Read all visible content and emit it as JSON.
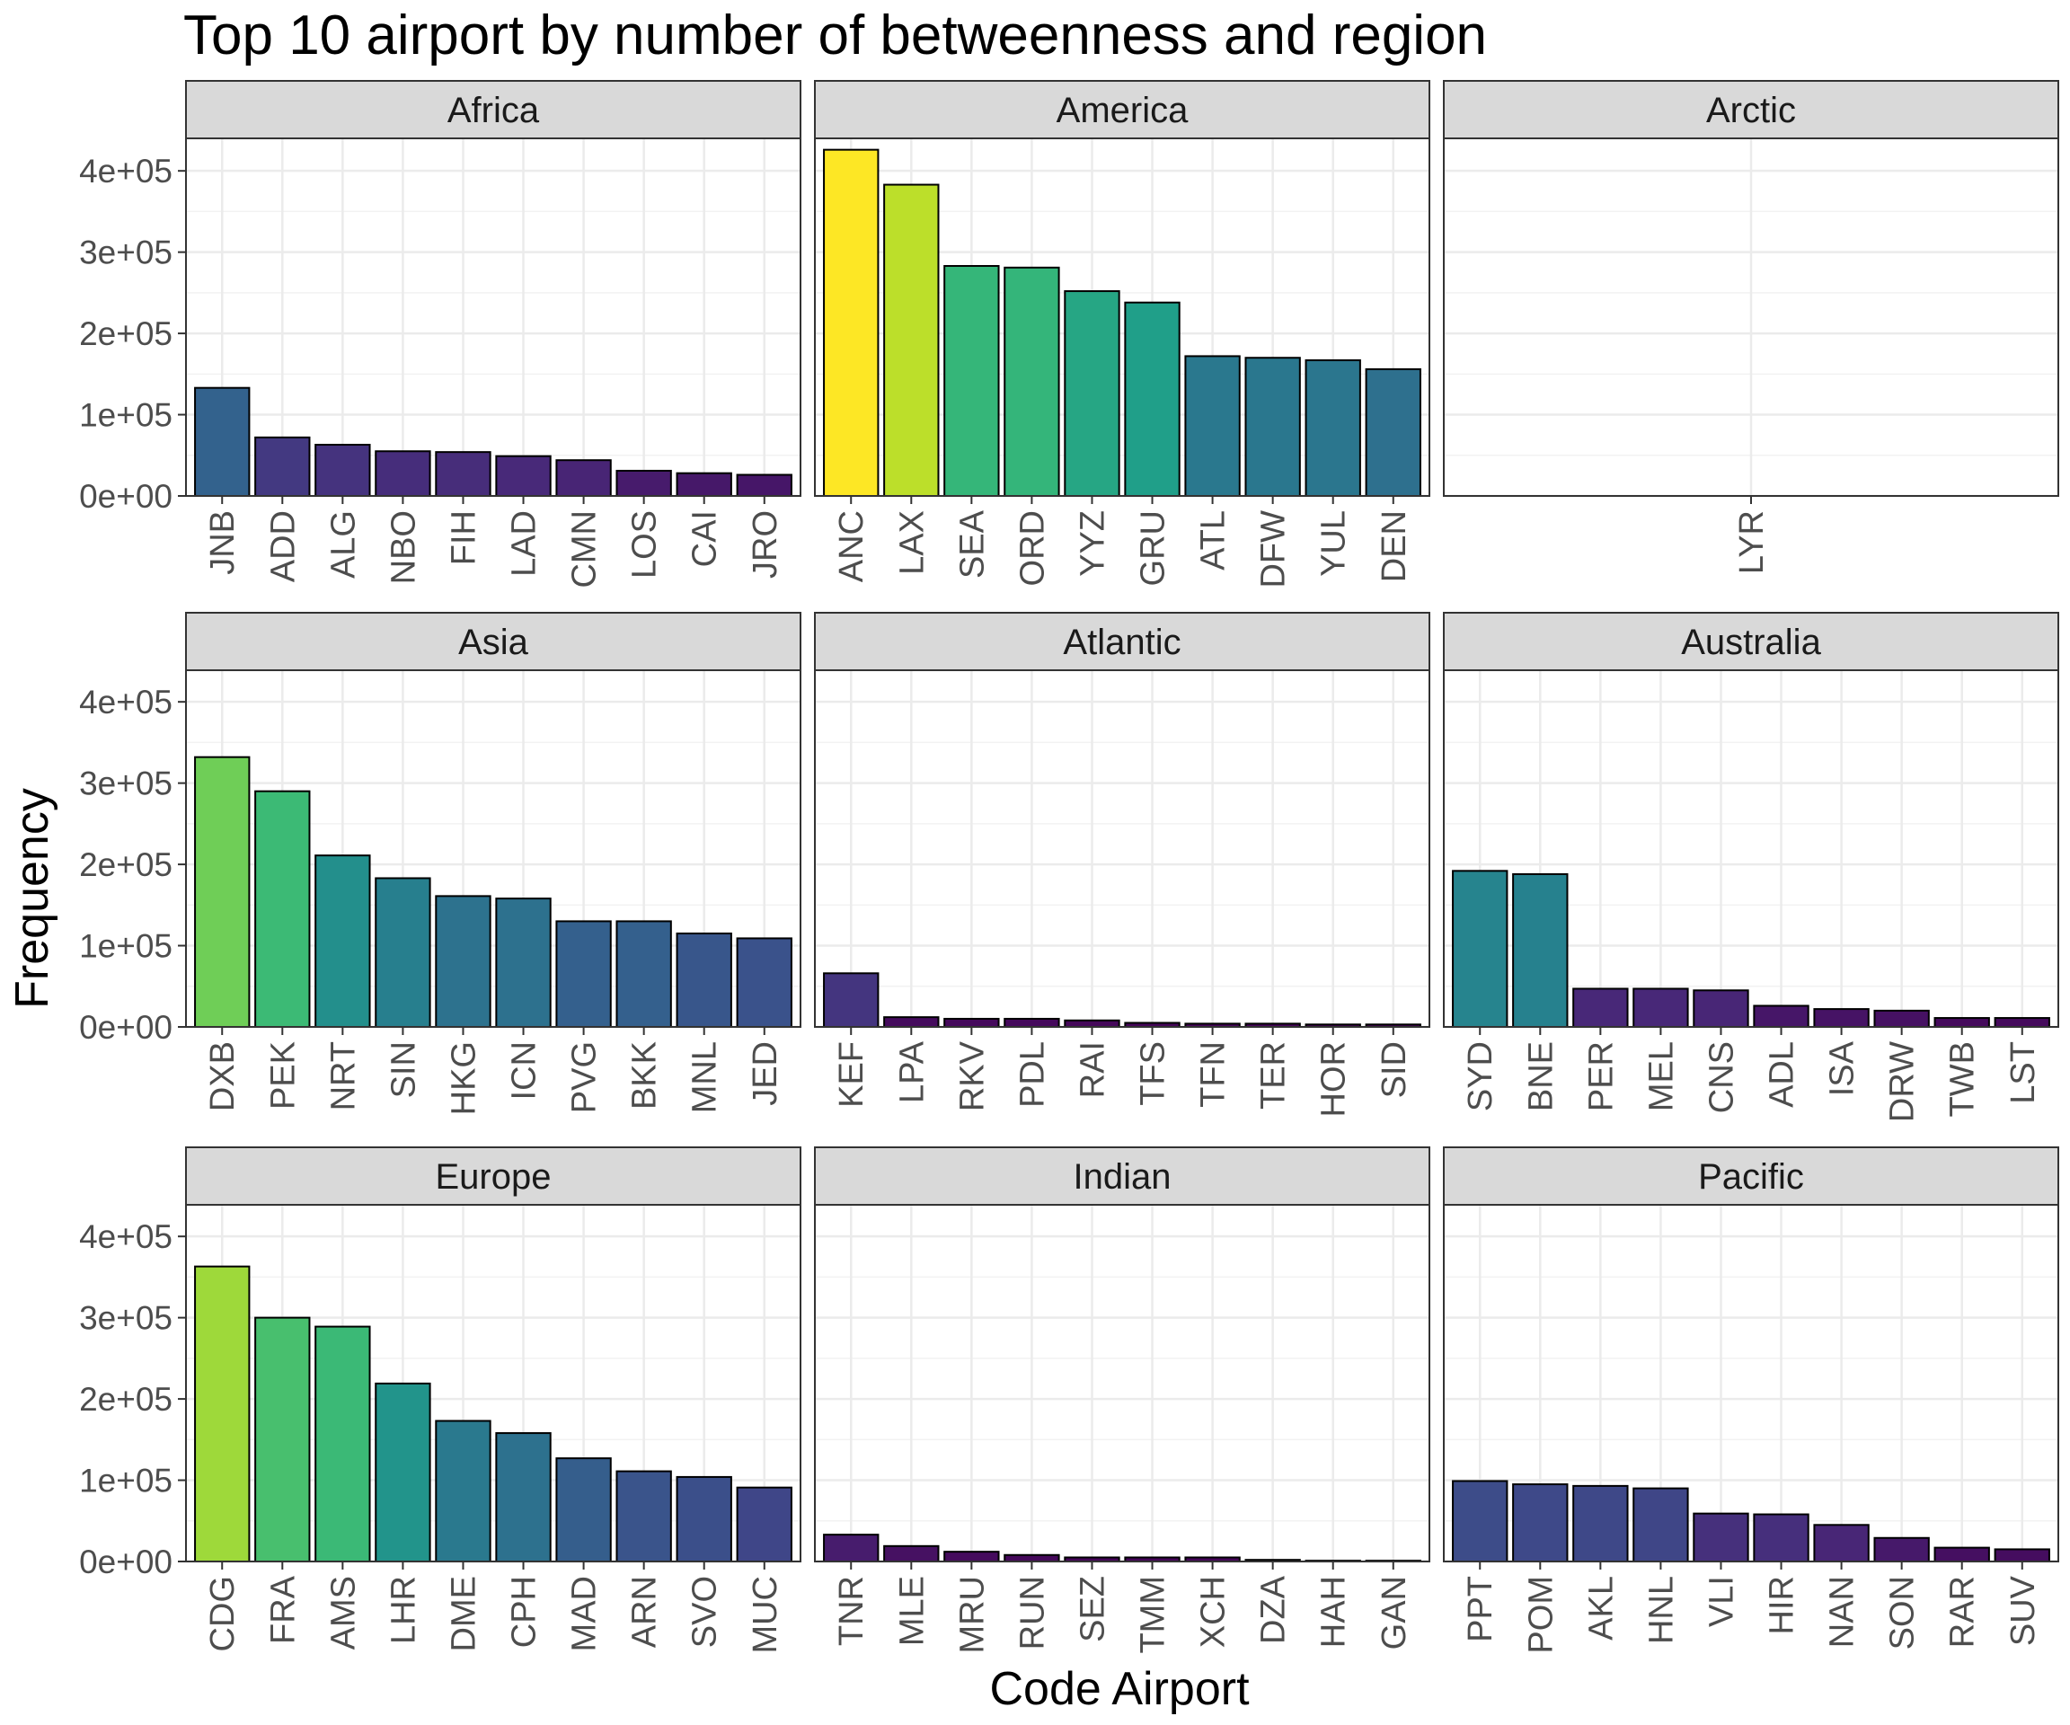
{
  "chart_data": {
    "type": "bar",
    "title": "Top 10 airport by number of betweenness and region",
    "xlabel": "Code Airport",
    "ylabel": "Frequency",
    "ylim": [
      0,
      440000
    ],
    "yticks": [
      0,
      100000,
      200000,
      300000,
      400000
    ],
    "ytick_labels": [
      "0e+00",
      "1e+05",
      "2e+05",
      "3e+05",
      "4e+05"
    ],
    "grid": true,
    "legend": "none",
    "color_scale": "viridis",
    "panels": [
      {
        "region": "Africa",
        "categories": [
          "JNB",
          "ADD",
          "ALG",
          "NBO",
          "FIH",
          "LAD",
          "CMN",
          "LOS",
          "CAI",
          "JRO"
        ],
        "values": [
          133000,
          72000,
          63000,
          55000,
          54000,
          49000,
          44000,
          31000,
          28000,
          26000
        ]
      },
      {
        "region": "America",
        "categories": [
          "ANC",
          "LAX",
          "SEA",
          "ORD",
          "YYZ",
          "GRU",
          "ATL",
          "DFW",
          "YUL",
          "DEN"
        ],
        "values": [
          426000,
          383000,
          283000,
          281000,
          252000,
          238000,
          172000,
          170000,
          167000,
          156000
        ]
      },
      {
        "region": "Arctic",
        "categories": [
          "LYR"
        ],
        "values": [
          0
        ]
      },
      {
        "region": "Asia",
        "categories": [
          "DXB",
          "PEK",
          "NRT",
          "SIN",
          "HKG",
          "ICN",
          "PVG",
          "BKK",
          "MNL",
          "JED"
        ],
        "values": [
          332000,
          290000,
          211000,
          183000,
          161000,
          158000,
          130000,
          130000,
          115000,
          109000
        ]
      },
      {
        "region": "Atlantic",
        "categories": [
          "KEF",
          "LPA",
          "RKV",
          "PDL",
          "RAI",
          "TFS",
          "TFN",
          "TER",
          "HOR",
          "SID"
        ],
        "values": [
          66000,
          12000,
          10000,
          10000,
          8000,
          5000,
          4000,
          4000,
          3000,
          3000
        ]
      },
      {
        "region": "Australia",
        "categories": [
          "SYD",
          "BNE",
          "PER",
          "MEL",
          "CNS",
          "ADL",
          "ISA",
          "DRW",
          "TWB",
          "LST"
        ],
        "values": [
          192000,
          188000,
          47000,
          47000,
          45000,
          26000,
          22000,
          20000,
          11000,
          11000
        ]
      },
      {
        "region": "Europe",
        "categories": [
          "CDG",
          "FRA",
          "AMS",
          "LHR",
          "DME",
          "CPH",
          "MAD",
          "ARN",
          "SVO",
          "MUC"
        ],
        "values": [
          363000,
          300000,
          289000,
          219000,
          173000,
          158000,
          127000,
          111000,
          104000,
          91000
        ]
      },
      {
        "region": "Indian",
        "categories": [
          "TNR",
          "MLE",
          "MRU",
          "RUN",
          "SEZ",
          "TMM",
          "XCH",
          "DZA",
          "HAH",
          "GAN"
        ],
        "values": [
          33000,
          19000,
          12000,
          8000,
          5000,
          5000,
          5000,
          2000,
          1000,
          1000
        ]
      },
      {
        "region": "Pacific",
        "categories": [
          "PPT",
          "POM",
          "AKL",
          "HNL",
          "VLI",
          "HIR",
          "NAN",
          "SON",
          "RAR",
          "SUV"
        ],
        "values": [
          99000,
          95000,
          93000,
          90000,
          59000,
          58000,
          45000,
          29000,
          17000,
          15000
        ]
      }
    ]
  }
}
